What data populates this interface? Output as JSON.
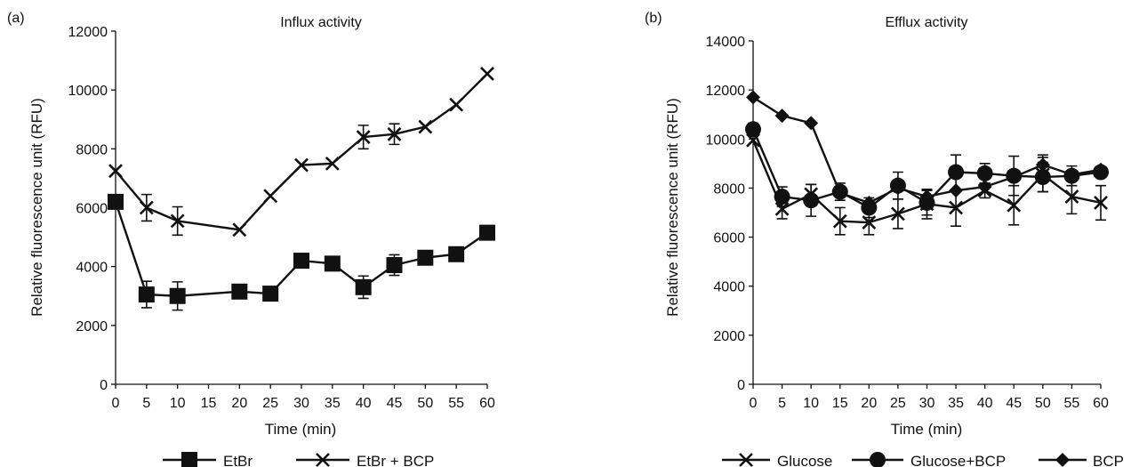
{
  "chart_data": [
    {
      "panel_label": "(a)",
      "type": "line",
      "title": "Influx activity",
      "xlabel": "Time (min)",
      "ylabel": "Relative fluorescence unit (RFU)",
      "x": [
        0,
        5,
        10,
        20,
        25,
        30,
        35,
        40,
        45,
        50,
        55,
        60
      ],
      "x_ticks": [
        0,
        5,
        10,
        15,
        20,
        25,
        30,
        35,
        40,
        45,
        50,
        55,
        60
      ],
      "xlim": [
        0,
        60
      ],
      "ylim": [
        0,
        12000
      ],
      "y_ticks": [
        0,
        2000,
        4000,
        6000,
        8000,
        10000,
        12000
      ],
      "grid": false,
      "legend_position": "bottom",
      "series": [
        {
          "name": "EtBr",
          "marker": "square",
          "values": [
            6200,
            3050,
            3000,
            3150,
            3080,
            4200,
            4100,
            3300,
            4050,
            4300,
            4420,
            5150
          ],
          "errors": [
            0,
            450,
            480,
            0,
            0,
            0,
            0,
            380,
            350,
            0,
            0,
            0
          ]
        },
        {
          "name": "EtBr + BCP",
          "marker": "x",
          "values": [
            7250,
            6000,
            5550,
            5250,
            6400,
            7450,
            7500,
            8400,
            8500,
            8750,
            9500,
            10550
          ],
          "errors": [
            0,
            450,
            480,
            0,
            0,
            0,
            0,
            400,
            350,
            0,
            0,
            0
          ]
        }
      ]
    },
    {
      "panel_label": "(b)",
      "type": "line",
      "title": "Efflux activity",
      "xlabel": "Time (min)",
      "ylabel": "Relative fluorescence unit (RFU)",
      "x": [
        0,
        5,
        10,
        15,
        20,
        25,
        30,
        35,
        40,
        45,
        50,
        55,
        60
      ],
      "x_ticks": [
        0,
        5,
        10,
        15,
        20,
        25,
        30,
        35,
        40,
        45,
        50,
        55,
        60
      ],
      "xlim": [
        0,
        60
      ],
      "ylim": [
        0,
        14000
      ],
      "y_ticks": [
        0,
        2000,
        4000,
        6000,
        8000,
        10000,
        12000,
        14000
      ],
      "grid": false,
      "legend_position": "bottom",
      "series": [
        {
          "name": "Glucose",
          "marker": "x",
          "values": [
            9950,
            7150,
            7750,
            6650,
            6600,
            6950,
            7350,
            7200,
            7900,
            7300,
            8550,
            7650,
            7400
          ],
          "errors": [
            0,
            400,
            400,
            550,
            500,
            600,
            600,
            750,
            300,
            800,
            700,
            700,
            700
          ]
        },
        {
          "name": "Glucose+BCP",
          "marker": "circle",
          "values": [
            10400,
            7650,
            7500,
            7850,
            7200,
            8100,
            7400,
            8650,
            8600,
            8500,
            8450,
            8500,
            8650
          ],
          "errors": [
            250,
            400,
            650,
            350,
            400,
            550,
            500,
            700,
            400,
            800,
            600,
            400,
            200
          ]
        },
        {
          "name": "BCP",
          "marker": "diamond",
          "values": [
            11700,
            10950,
            10650,
            7800,
            7400,
            8000,
            7650,
            7900,
            8050,
            8450,
            8950,
            8550,
            8750
          ],
          "errors": [
            0,
            0,
            0,
            0,
            0,
            0,
            0,
            0,
            0,
            0,
            400,
            0,
            0
          ]
        }
      ]
    }
  ]
}
